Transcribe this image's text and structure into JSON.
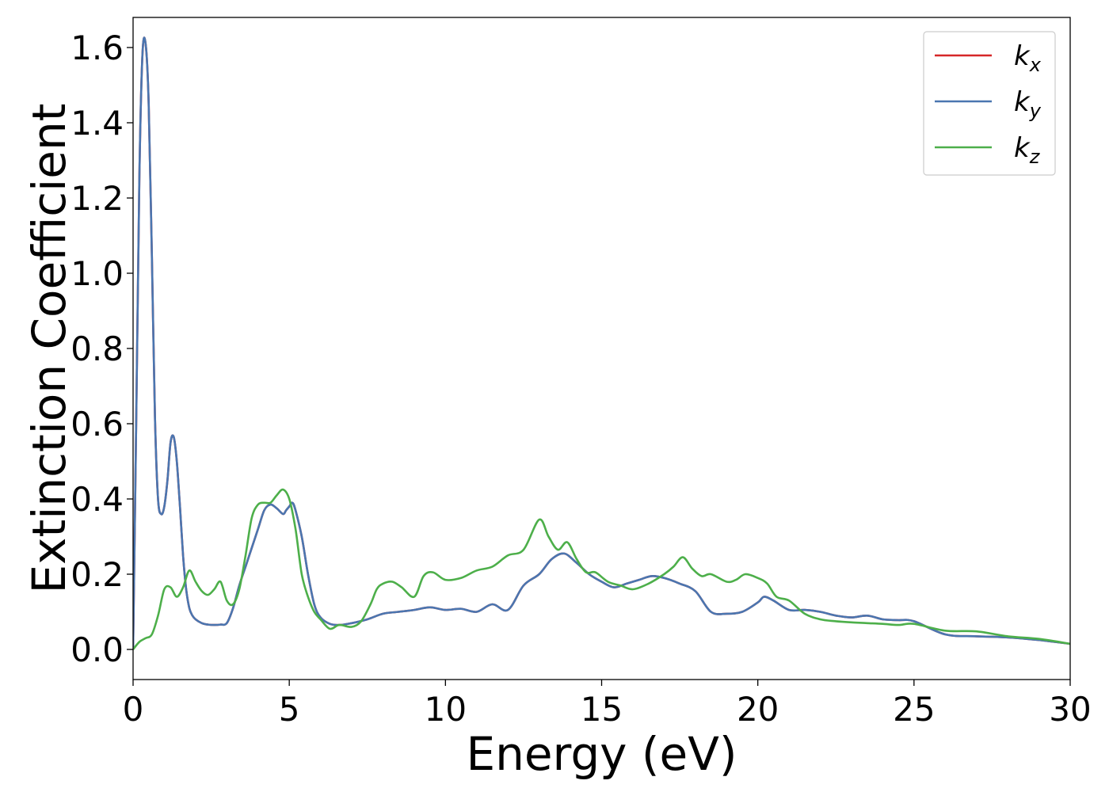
{
  "chart_data": {
    "type": "line",
    "xlabel": "Energy (eV)",
    "ylabel": "Extinction Coefficient",
    "xlim": [
      0,
      30
    ],
    "ylim": [
      -0.08,
      1.68
    ],
    "xticks": [
      0,
      5,
      10,
      15,
      20,
      25,
      30
    ],
    "xtick_labels": [
      "0",
      "5",
      "10",
      "15",
      "20",
      "25",
      "30"
    ],
    "yticks": [
      0.0,
      0.2,
      0.4,
      0.6,
      0.8,
      1.0,
      1.2,
      1.4,
      1.6
    ],
    "ytick_labels": [
      "0.0",
      "0.2",
      "0.4",
      "0.6",
      "0.8",
      "1.0",
      "1.2",
      "1.4",
      "1.6"
    ],
    "grid": false,
    "legend_position": "top-right",
    "series": [
      {
        "name": "k",
        "sub": "x",
        "color": "#d62728",
        "x": [
          0,
          0.1,
          0.2,
          0.3,
          0.4,
          0.5,
          0.6,
          0.7,
          0.8,
          0.9,
          1.0,
          1.1,
          1.2,
          1.3,
          1.4,
          1.5,
          1.6,
          1.7,
          1.8,
          1.9,
          2.0,
          2.2,
          2.4,
          2.6,
          2.8,
          3.0,
          3.2,
          3.4,
          3.6,
          3.8,
          4.0,
          4.2,
          4.4,
          4.6,
          4.8,
          4.9,
          5.0,
          5.1,
          5.2,
          5.4,
          5.6,
          5.8,
          6.0,
          6.3,
          6.6,
          7.0,
          7.5,
          8.0,
          8.5,
          9.0,
          9.5,
          10.0,
          10.5,
          11.0,
          11.5,
          12.0,
          12.5,
          13.0,
          13.4,
          13.8,
          14.2,
          14.6,
          15.0,
          15.4,
          15.8,
          16.2,
          16.6,
          17.0,
          17.5,
          18.0,
          18.5,
          19.0,
          19.5,
          20.0,
          20.2,
          20.5,
          21.0,
          21.5,
          22.0,
          22.5,
          23.0,
          23.5,
          24.0,
          24.5,
          25.0,
          26.0,
          27.0,
          28.0,
          29.0,
          30.0
        ],
        "y": [
          0.0,
          0.6,
          1.25,
          1.58,
          1.61,
          1.45,
          1.05,
          0.62,
          0.4,
          0.36,
          0.38,
          0.45,
          0.55,
          0.565,
          0.5,
          0.38,
          0.25,
          0.16,
          0.11,
          0.09,
          0.08,
          0.07,
          0.066,
          0.065,
          0.066,
          0.07,
          0.11,
          0.17,
          0.22,
          0.27,
          0.32,
          0.37,
          0.385,
          0.375,
          0.36,
          0.37,
          0.38,
          0.39,
          0.37,
          0.3,
          0.2,
          0.12,
          0.085,
          0.068,
          0.065,
          0.07,
          0.08,
          0.095,
          0.1,
          0.105,
          0.112,
          0.105,
          0.108,
          0.1,
          0.12,
          0.105,
          0.17,
          0.2,
          0.24,
          0.255,
          0.23,
          0.2,
          0.18,
          0.165,
          0.175,
          0.185,
          0.195,
          0.19,
          0.175,
          0.155,
          0.1,
          0.095,
          0.1,
          0.125,
          0.14,
          0.13,
          0.105,
          0.105,
          0.1,
          0.09,
          0.085,
          0.09,
          0.08,
          0.078,
          0.075,
          0.04,
          0.035,
          0.032,
          0.025,
          0.015
        ]
      },
      {
        "name": "k",
        "sub": "y",
        "color": "#4a76b0",
        "x": [
          0,
          0.1,
          0.2,
          0.3,
          0.4,
          0.5,
          0.6,
          0.7,
          0.8,
          0.9,
          1.0,
          1.1,
          1.2,
          1.3,
          1.4,
          1.5,
          1.6,
          1.7,
          1.8,
          1.9,
          2.0,
          2.2,
          2.4,
          2.6,
          2.8,
          3.0,
          3.2,
          3.4,
          3.6,
          3.8,
          4.0,
          4.2,
          4.4,
          4.6,
          4.8,
          4.9,
          5.0,
          5.1,
          5.2,
          5.4,
          5.6,
          5.8,
          6.0,
          6.3,
          6.6,
          7.0,
          7.5,
          8.0,
          8.5,
          9.0,
          9.5,
          10.0,
          10.5,
          11.0,
          11.5,
          12.0,
          12.5,
          13.0,
          13.4,
          13.8,
          14.2,
          14.6,
          15.0,
          15.4,
          15.8,
          16.2,
          16.6,
          17.0,
          17.5,
          18.0,
          18.5,
          19.0,
          19.5,
          20.0,
          20.2,
          20.5,
          21.0,
          21.5,
          22.0,
          22.5,
          23.0,
          23.5,
          24.0,
          24.5,
          25.0,
          26.0,
          27.0,
          28.0,
          29.0,
          30.0
        ],
        "y": [
          0.0,
          0.6,
          1.25,
          1.58,
          1.61,
          1.45,
          1.05,
          0.62,
          0.4,
          0.36,
          0.38,
          0.45,
          0.55,
          0.565,
          0.5,
          0.38,
          0.25,
          0.16,
          0.11,
          0.09,
          0.08,
          0.07,
          0.066,
          0.065,
          0.066,
          0.07,
          0.11,
          0.17,
          0.22,
          0.27,
          0.32,
          0.37,
          0.385,
          0.375,
          0.36,
          0.37,
          0.38,
          0.39,
          0.37,
          0.3,
          0.2,
          0.12,
          0.085,
          0.068,
          0.065,
          0.07,
          0.08,
          0.095,
          0.1,
          0.105,
          0.112,
          0.105,
          0.108,
          0.1,
          0.12,
          0.105,
          0.17,
          0.2,
          0.24,
          0.255,
          0.23,
          0.2,
          0.18,
          0.165,
          0.175,
          0.185,
          0.195,
          0.19,
          0.175,
          0.155,
          0.1,
          0.095,
          0.1,
          0.125,
          0.14,
          0.13,
          0.105,
          0.105,
          0.1,
          0.09,
          0.085,
          0.09,
          0.08,
          0.078,
          0.075,
          0.04,
          0.035,
          0.032,
          0.025,
          0.015
        ]
      },
      {
        "name": "k",
        "sub": "z",
        "color": "#4daf4a",
        "x": [
          0,
          0.2,
          0.4,
          0.6,
          0.8,
          1.0,
          1.2,
          1.4,
          1.6,
          1.8,
          2.0,
          2.2,
          2.4,
          2.6,
          2.8,
          3.0,
          3.2,
          3.4,
          3.6,
          3.8,
          4.0,
          4.2,
          4.4,
          4.6,
          4.8,
          5.0,
          5.2,
          5.4,
          5.6,
          5.8,
          6.0,
          6.3,
          6.6,
          7.0,
          7.3,
          7.6,
          7.8,
          8.0,
          8.3,
          8.6,
          9.0,
          9.3,
          9.6,
          10.0,
          10.5,
          11.0,
          11.5,
          12.0,
          12.5,
          13.0,
          13.3,
          13.6,
          13.9,
          14.2,
          14.5,
          14.8,
          15.2,
          15.6,
          16.0,
          16.5,
          17.0,
          17.3,
          17.6,
          17.9,
          18.2,
          18.5,
          19.0,
          19.3,
          19.6,
          20.0,
          20.3,
          20.6,
          21.0,
          21.5,
          22.0,
          22.5,
          23.0,
          23.5,
          24.0,
          24.5,
          25.0,
          26.0,
          27.0,
          28.0,
          29.0,
          30.0
        ],
        "y": [
          0.0,
          0.02,
          0.03,
          0.04,
          0.09,
          0.16,
          0.165,
          0.14,
          0.165,
          0.21,
          0.18,
          0.155,
          0.145,
          0.16,
          0.18,
          0.13,
          0.12,
          0.16,
          0.25,
          0.35,
          0.385,
          0.39,
          0.39,
          0.41,
          0.425,
          0.4,
          0.32,
          0.2,
          0.14,
          0.1,
          0.08,
          0.055,
          0.065,
          0.06,
          0.075,
          0.12,
          0.16,
          0.175,
          0.18,
          0.165,
          0.14,
          0.195,
          0.205,
          0.185,
          0.19,
          0.21,
          0.22,
          0.25,
          0.265,
          0.345,
          0.3,
          0.265,
          0.285,
          0.24,
          0.205,
          0.205,
          0.18,
          0.17,
          0.16,
          0.175,
          0.2,
          0.22,
          0.245,
          0.215,
          0.195,
          0.2,
          0.18,
          0.185,
          0.2,
          0.19,
          0.175,
          0.14,
          0.13,
          0.095,
          0.08,
          0.075,
          0.072,
          0.07,
          0.068,
          0.065,
          0.068,
          0.05,
          0.048,
          0.035,
          0.028,
          0.015
        ]
      }
    ]
  }
}
